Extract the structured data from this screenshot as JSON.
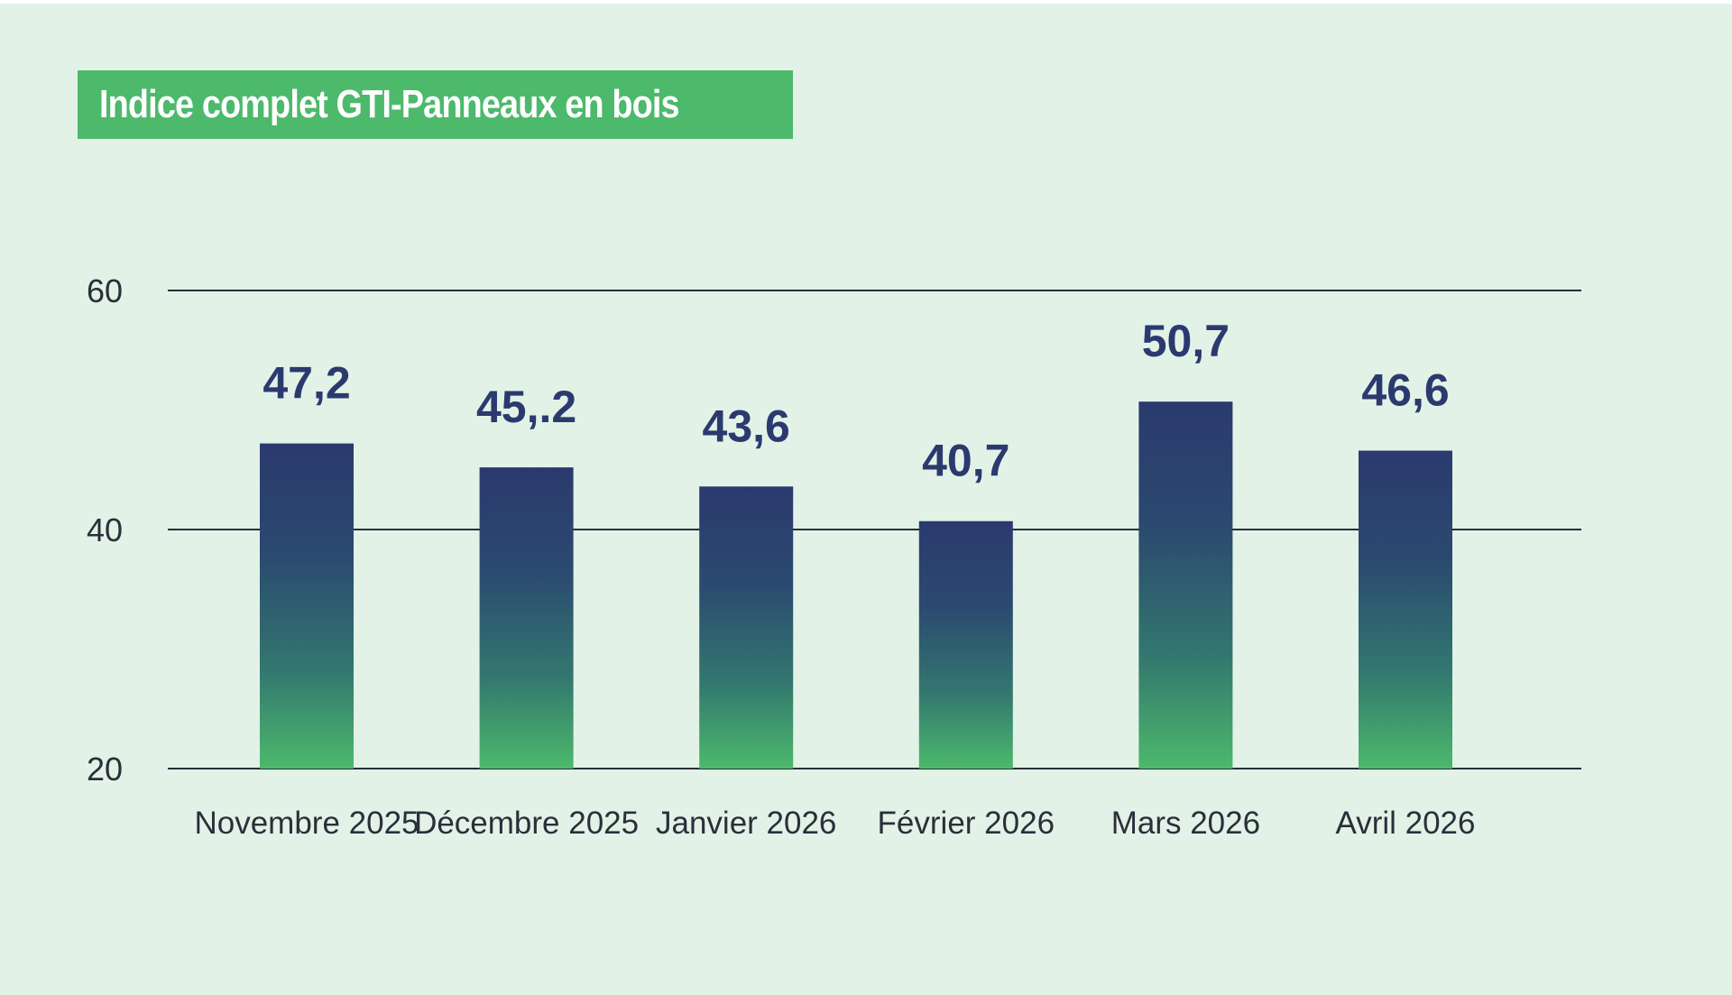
{
  "chart_data": {
    "type": "bar",
    "title": "Indice complet GTI-Panneaux en bois",
    "categories": [
      "Novembre 2025",
      "Décembre 2025",
      "Janvier 2026",
      "Février 2026",
      "Mars 2026",
      "Avril 2026"
    ],
    "values": [
      47.2,
      45.2,
      43.6,
      40.7,
      50.7,
      46.6
    ],
    "value_labels": [
      "47,2",
      "45,.2",
      "43,6",
      "40,7",
      "50,7",
      "46,6"
    ],
    "ylim": [
      20,
      60
    ],
    "yticks": [
      20,
      40,
      60
    ],
    "grid": true,
    "colors": {
      "background": "#e2f2e7",
      "title_background": "#4cb96b",
      "bar_top": "#2b3a6e",
      "bar_bottom": "#4cb96b",
      "value_label": "#2b3a6e",
      "gridline": "#2a2f3a"
    }
  }
}
